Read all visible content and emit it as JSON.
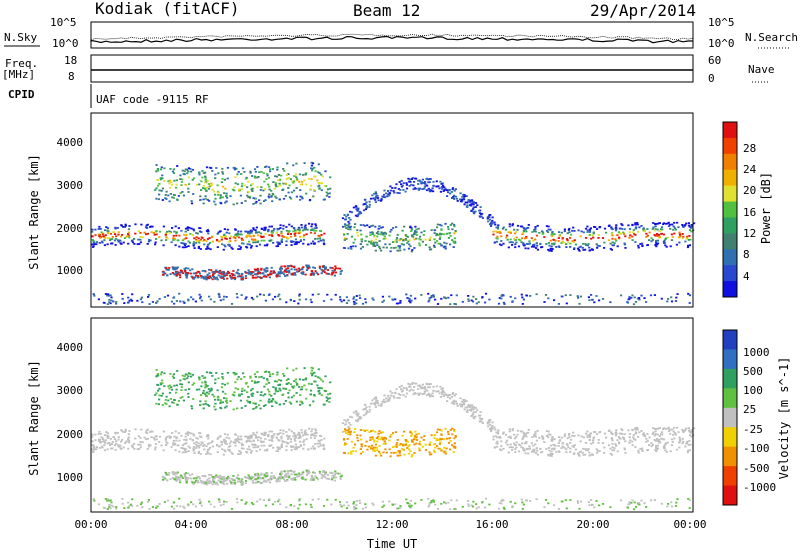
{
  "header": {
    "station": "Kodiak (fitACF)",
    "beam": "Beam 12",
    "date": "29/Apr/2014",
    "nsky_label": "N.Sky",
    "nsearch_label": "N.Search",
    "nsky_ticks": [
      "10^5",
      "10^0"
    ],
    "nsearch_ticks": [
      "10^5",
      "10^0"
    ],
    "freq_label_1": "Freq.",
    "freq_label_2": "[MHz]",
    "freq_ticks": [
      "18",
      "8"
    ],
    "nave_label": "Nave",
    "nave_ticks": [
      "60",
      "0"
    ],
    "cpid_label": "CPID",
    "cpid_value": "UAF code -9115 RF"
  },
  "chart_data": [
    {
      "type": "heatmap",
      "title": "",
      "xlabel": "",
      "ylabel": "Slant Range [km]",
      "x_ticks": [
        "00:00",
        "04:00",
        "08:00",
        "12:00",
        "16:00",
        "20:00",
        "00:00"
      ],
      "y_ticks": [
        "1000",
        "2000",
        "3000",
        "4000"
      ],
      "ylim": [
        0,
        4600
      ],
      "colorbar": {
        "label": "Power [dB]",
        "ticks": [
          "4",
          "8",
          "12",
          "16",
          "20",
          "24",
          "28"
        ],
        "colors": [
          "#1010e0",
          "#2848d0",
          "#3070b0",
          "#408070",
          "#30a060",
          "#50c040",
          "#e0e030",
          "#f0b000",
          "#f08000",
          "#f04000",
          "#e01010"
        ]
      },
      "bands": [
        {
          "name": "main",
          "t_start": 0.0,
          "t_end": 9.3,
          "range_center": 1650,
          "range_width": 250
        },
        {
          "name": "main-late",
          "t_start": 16.0,
          "t_end": 24.0,
          "range_center": 1650,
          "range_width": 300
        },
        {
          "name": "upper",
          "t_start": 2.5,
          "t_end": 9.5,
          "range_center": 2900,
          "range_width": 450
        },
        {
          "name": "mid",
          "t_start": 10.0,
          "t_end": 14.5,
          "range_center": 1650,
          "range_width": 300
        },
        {
          "name": "low",
          "t_start": 2.8,
          "t_end": 10.0,
          "range_center": 800,
          "range_width": 120
        }
      ]
    },
    {
      "type": "heatmap",
      "title": "",
      "xlabel": "Time UT",
      "ylabel": "Slant Range [km]",
      "x_ticks": [
        "00:00",
        "04:00",
        "08:00",
        "12:00",
        "16:00",
        "20:00",
        "00:00"
      ],
      "y_ticks": [
        "1000",
        "2000",
        "3000",
        "4000"
      ],
      "ylim": [
        0,
        4600
      ],
      "colorbar": {
        "label": "Velocity [m s^-1]",
        "ticks": [
          "1000",
          "500",
          "100",
          "25",
          "-25",
          "-100",
          "-500",
          "-1000"
        ],
        "colors": [
          "#2040c0",
          "#3070c0",
          "#30a060",
          "#60c040",
          "#c0c0c0",
          "#f0d000",
          "#f09000",
          "#f04000",
          "#e01010"
        ]
      }
    }
  ]
}
